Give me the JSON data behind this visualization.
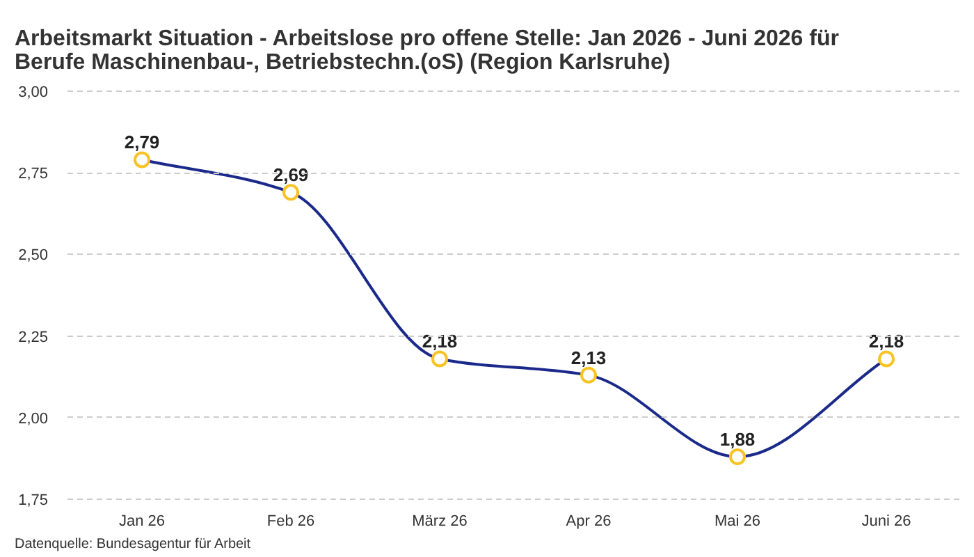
{
  "chart_data": {
    "type": "line",
    "title": "Arbeitsmarkt Situation - Arbeitslose pro offene Stelle: Jan 2026 - Juni 2026 für Berufe Maschinenbau-, Betriebstechn.(oS) (Region Karlsruhe)",
    "categories": [
      "Jan 26",
      "Feb 26",
      "März 26",
      "Apr 26",
      "Mai 26",
      "Juni 26"
    ],
    "series": [
      {
        "color": "#1b2a8a",
        "colors": [
          "#f7c325",
          "#f7c325",
          "#f7c325",
          "#f7c325",
          "#f7c325",
          "#f7c325"
        ],
        "values": [
          2.79,
          2.69,
          2.18,
          2.13,
          1.88,
          2.18
        ],
        "value_labels": [
          "2,79",
          "2,69",
          "2,18",
          "2,13",
          "1,88",
          "2,18"
        ]
      }
    ],
    "ylim": [
      1.75,
      3.0
    ],
    "yticks": [
      {
        "value": 1.75,
        "label": "1,75"
      },
      {
        "value": 2.0,
        "label": "2,00"
      },
      {
        "value": 2.25,
        "label": "2,25"
      },
      {
        "value": 2.5,
        "label": "2,50"
      },
      {
        "value": 2.75,
        "label": "2,75"
      },
      {
        "value": 3.0,
        "label": "3,00"
      }
    ],
    "grid": "y",
    "marker": "circle",
    "line_style": "solid",
    "annotations": [
      "Datenquelle: Bundesagentur für Arbeit"
    ]
  }
}
